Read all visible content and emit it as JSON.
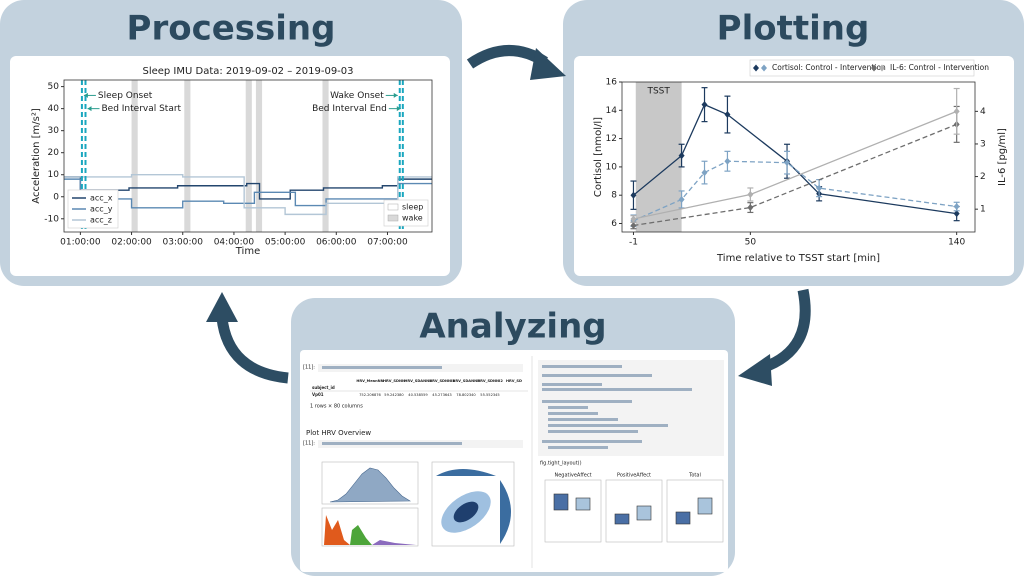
{
  "panels": {
    "processing": "Processing",
    "plotting": "Plotting",
    "analyzing": "Analyzing"
  },
  "processing_chart": {
    "type": "line",
    "title": "Sleep IMU Data: 2019-09-02 – 2019-09-03",
    "x_label": "Time",
    "y_label": "Acceleration [m/s²]",
    "xlim": [
      0.68,
      7.87
    ],
    "ylim": [
      -16,
      53
    ],
    "xticks": [
      {
        "value": 1,
        "label": "01:00:00"
      },
      {
        "value": 2,
        "label": "02:00:00"
      },
      {
        "value": 3,
        "label": "03:00:00"
      },
      {
        "value": 4,
        "label": "04:00:00"
      },
      {
        "value": 5,
        "label": "05:00:00"
      },
      {
        "value": 6,
        "label": "06:00:00"
      },
      {
        "value": 7,
        "label": "07:00:00"
      }
    ],
    "yticks": [
      -10,
      0,
      10,
      20,
      30,
      40,
      50
    ],
    "series": [
      {
        "name": "acc_x",
        "color": "#23466e",
        "x": [
          0.68,
          1.0,
          1.0,
          1.95,
          1.95,
          2.9,
          2.9,
          4.25,
          4.25,
          4.5,
          4.5,
          5.1,
          5.1,
          5.75,
          5.75,
          6.9,
          6.9,
          7.2,
          7.2,
          7.87
        ],
        "values": [
          9,
          9,
          3,
          3,
          4,
          4,
          5,
          5,
          6,
          6,
          -1,
          -1,
          3,
          3,
          4,
          4,
          5,
          5,
          8,
          8
        ]
      },
      {
        "name": "acc_y",
        "color": "#5b89b3",
        "x": [
          0.68,
          1.0,
          1.0,
          2.0,
          2.0,
          3.0,
          3.0,
          3.8,
          3.8,
          4.4,
          4.4,
          5.2,
          5.2,
          5.8,
          5.8,
          7.2,
          7.2,
          7.87
        ],
        "values": [
          8,
          8,
          -1,
          -1,
          -5,
          -5,
          -2,
          -2,
          -3,
          -3,
          2,
          2,
          -4,
          -4,
          -1,
          -1,
          6,
          6
        ]
      },
      {
        "name": "acc_z",
        "color": "#b3c6d6",
        "x": [
          0.68,
          1.0,
          1.0,
          2.0,
          2.0,
          3.0,
          3.0,
          4.2,
          4.2,
          5.0,
          5.0,
          5.8,
          5.8,
          7.2,
          7.2,
          7.87
        ],
        "values": [
          9,
          9,
          9,
          9,
          10,
          10,
          9,
          9,
          -5,
          -5,
          -8,
          -8,
          -3,
          -3,
          9,
          9
        ]
      }
    ],
    "wake_periods": [
      [
        2.0,
        2.12
      ],
      [
        3.03,
        3.15
      ],
      [
        4.23,
        4.35
      ],
      [
        4.43,
        4.55
      ],
      [
        5.73,
        5.85
      ]
    ],
    "wake_color": "#d9d9d9",
    "event_color": "#1aa7bf",
    "events": [
      {
        "label": "Sleep Onset",
        "x": 1.03,
        "y": 46
      },
      {
        "label": "Bed Interval Start",
        "x": 1.1,
        "y": 40
      },
      {
        "label": "Wake Onset",
        "x": 7.24,
        "y": 46
      },
      {
        "label": "Bed Interval End",
        "x": 7.3,
        "y": 40
      }
    ],
    "state_legend": [
      "sleep",
      "wake"
    ]
  },
  "plotting_chart": {
    "type": "line",
    "x_label": "Time relative to TSST start [min]",
    "y_label": "Cortisol [nmol/l]",
    "y2_label": "IL-6 [pg/ml]",
    "xlim": [
      -6,
      148
    ],
    "ylim": [
      5.4,
      16
    ],
    "y2lim": [
      0.3,
      4.9
    ],
    "xticks": [
      -1,
      50,
      140
    ],
    "yticks": [
      6,
      8,
      10,
      12,
      14,
      16
    ],
    "y2ticks": [
      1,
      2,
      3,
      4
    ],
    "shaded": {
      "label": "TSST",
      "x": [
        0,
        20
      ]
    },
    "series": [
      {
        "name": "Cortisol: Control - Intervention",
        "axis": "y",
        "colors": [
          "#1c3a5e",
          "#7ea3c4"
        ],
        "dashed": [
          false,
          true
        ],
        "groups": [
          {
            "x": [
              -1,
              20,
              30,
              40,
              66,
              80,
              140
            ],
            "values": [
              8.0,
              10.8,
              14.4,
              13.7,
              10.4,
              8.1,
              6.7
            ],
            "errors": [
              1.0,
              0.8,
              1.2,
              1.3,
              1.2,
              0.5,
              0.5
            ]
          },
          {
            "x": [
              -1,
              20,
              30,
              40,
              66,
              80,
              140
            ],
            "values": [
              6.2,
              7.7,
              9.6,
              10.4,
              10.3,
              8.5,
              7.2
            ],
            "errors": [
              0.4,
              0.6,
              0.8,
              0.7,
              0.8,
              0.6,
              0.3
            ]
          }
        ]
      },
      {
        "name": "IL-6: Control - Intervention",
        "axis": "y2",
        "colors": [
          "#6e6e6e",
          "#b0b0b0"
        ],
        "dashed": [
          true,
          false
        ],
        "groups": [
          {
            "x": [
              -1,
              50,
              140
            ],
            "values": [
              0.5,
              1.05,
              3.6
            ],
            "errors": [
              0.1,
              0.15,
              0.55
            ]
          },
          {
            "x": [
              -1,
              50,
              140
            ],
            "values": [
              0.7,
              1.45,
              4.0
            ],
            "errors": [
              0.1,
              0.2,
              0.7
            ]
          }
        ]
      }
    ]
  },
  "analyzing": {
    "prompt": "[11]:",
    "table_columns": [
      "HRV_MeanNN",
      "HRV_SDNN",
      "HRV_SDANN1",
      "HRV_SDNNI1",
      "HRV_SDANN2",
      "HRV_SDNNI2",
      "HRV_SD"
    ],
    "table_index": "subject_id",
    "table_row_label": "Vp01",
    "table_row": [
      "752.206876",
      "59.242380",
      "40.538559",
      "45.273643",
      "78.802340",
      "55.552345"
    ],
    "table_note": "1 rows × 80 columns",
    "section": "Plot HRV Overview",
    "boxplot_titles": [
      "NegativeAffect",
      "PositiveAffect",
      "Total"
    ],
    "code_end": "fig.tight_layout()"
  }
}
